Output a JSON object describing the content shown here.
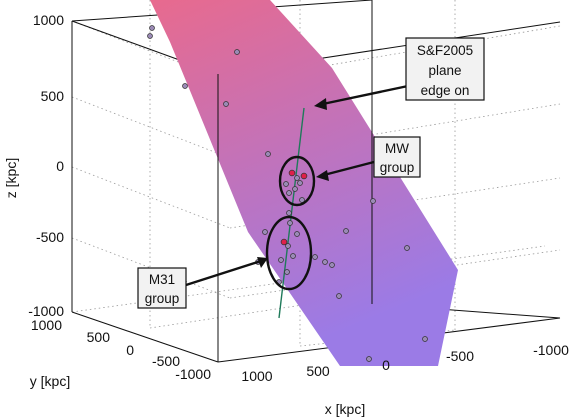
{
  "chart_data": {
    "type": "scatter",
    "xlabel": "x [kpc]",
    "ylabel": "y [kpc]",
    "zlabel": "z [kpc]",
    "x_ticks": [
      "1000",
      "500",
      "0",
      "-500",
      "-1000"
    ],
    "y_ticks": [
      "1000",
      "500",
      "0",
      "-500",
      "-1000"
    ],
    "z_ticks": [
      "1000",
      "500",
      "0",
      "-500",
      "-1000"
    ],
    "xlim": [
      -1000,
      1000
    ],
    "ylim": [
      -1000,
      1000
    ],
    "zlim": [
      -1000,
      1000
    ],
    "grid": true,
    "plane_colors": [
      "#e86a8e",
      "#9b7be6"
    ],
    "line_color": "#1f7a5a",
    "galaxy_color": "#9a8ab5",
    "highlight_color": "#e0204a",
    "annotations": [
      {
        "id": "plane",
        "lines": [
          "S&F2005",
          "plane",
          "edge on"
        ]
      },
      {
        "id": "mw",
        "lines": [
          "MW",
          "group"
        ]
      },
      {
        "id": "m31",
        "lines": [
          "M31",
          "group"
        ]
      }
    ]
  }
}
